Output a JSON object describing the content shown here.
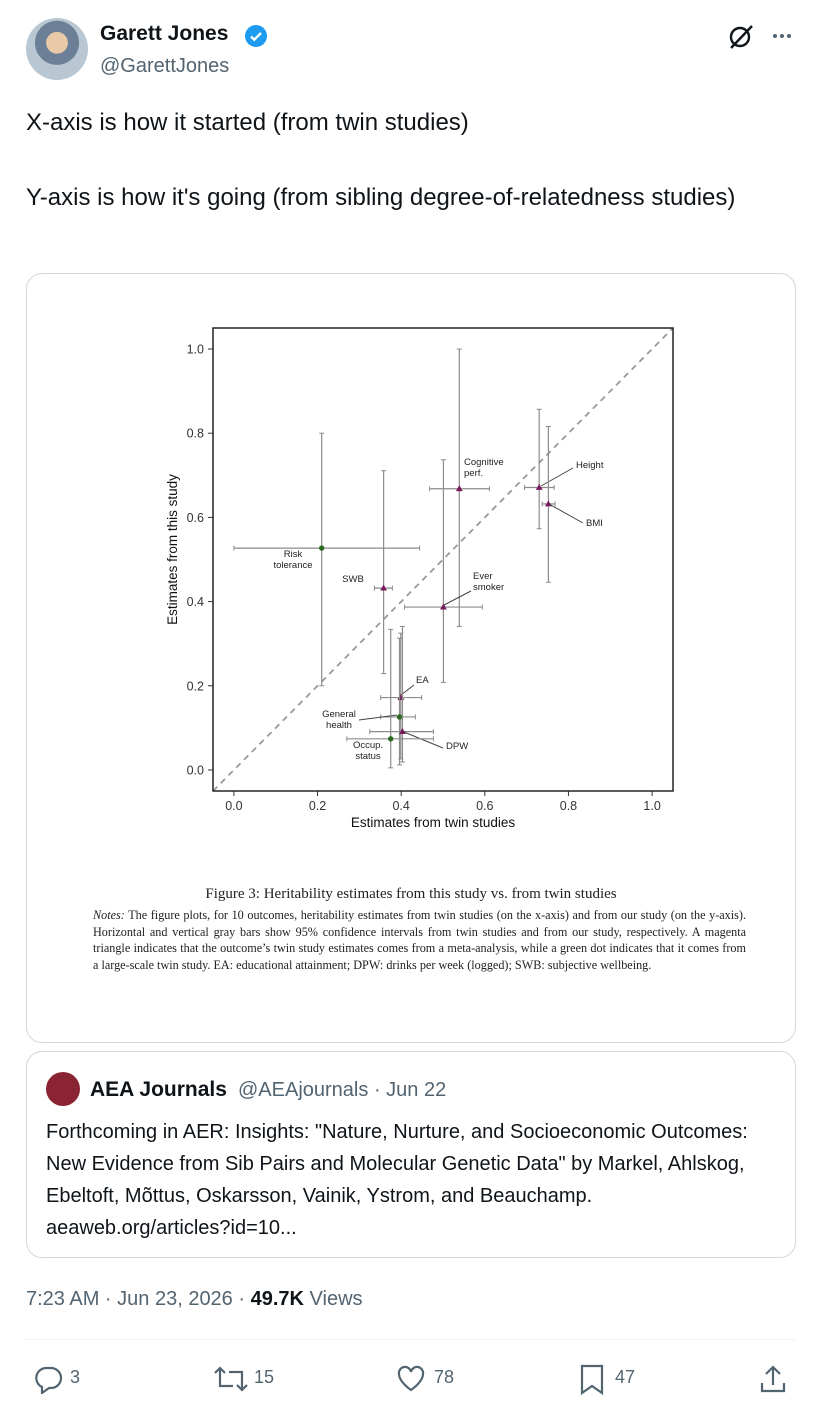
{
  "tweet": {
    "author": "Garett Jones",
    "handle": "@GarettJones",
    "text": [
      "X-axis is how it started (from twin studies)",
      "Y-axis is how it's going (from sibling degree-of-relatedness studies)"
    ],
    "quote": {
      "author": "AEA Journals",
      "handle": "@AEAjournals",
      "date": "· Jun 22",
      "text": "Forthcoming in AER: Insights: \"Nature, Nurture, and Socioeconomic Outcomes: New Evidence from Sib Pairs and Molecular Genetic Data\" by Markel, Ahlskog, Ebeltoft, Mõttus, Oskarsson, Vainik, Ystrom, and Beauchamp. aeaweb.org/articles?id=10..."
    },
    "timestamp": "7:23 AM · Jun 23, 2026 ·",
    "views": "49.7K",
    "views_label": "Views",
    "replies": 3,
    "reposts": 15,
    "likes": 78,
    "bookmarks": 47
  },
  "chart_data": {
    "type": "scatter",
    "xlabel": "Estimates from twin studies",
    "ylabel": "Estimates from this study",
    "xlim": [
      -0.05,
      1.05
    ],
    "ylim": [
      -0.05,
      1.05
    ],
    "xticks": [
      {
        "value": 0,
        "label": "0.0"
      },
      0.2,
      0.4,
      0.6,
      0.8,
      {
        "value": 1,
        "label": "1.0"
      }
    ],
    "yticks": [
      {
        "value": 0,
        "label": "0.0"
      },
      0.2,
      0.4,
      0.6,
      0.8,
      {
        "value": 1,
        "label": "1.0"
      }
    ],
    "diagonal": true,
    "marker_colors": {
      "triangle": "#7a1a5c",
      "dot": "#2d6a1f"
    },
    "points": [
      {
        "name": [
          "Risk",
          "tolerance"
        ],
        "marker": "dot",
        "x": 0.21,
        "y": 0.527,
        "x_ci": [
          0,
          0.444
        ],
        "y_ci": [
          0.2,
          0.8
        ]
      },
      {
        "name": [
          "SWB"
        ],
        "marker": "triangle",
        "x": 0.358,
        "y": 0.432,
        "x_ci": [
          0.336,
          0.379
        ],
        "y_ci": [
          0.229,
          0.711
        ]
      },
      {
        "name": [
          "Cognitive",
          "perf."
        ],
        "marker": "triangle",
        "x": 0.539,
        "y": 0.668,
        "x_ci": [
          0.468,
          0.611
        ],
        "y_ci": [
          0.341,
          1.0
        ]
      },
      {
        "name": [
          "Height"
        ],
        "marker": "triangle",
        "x": 0.73,
        "y": 0.671,
        "x_ci": [
          0.695,
          0.766
        ],
        "y_ci": [
          0.573,
          0.857
        ]
      },
      {
        "name": [
          "BMI"
        ],
        "marker": "triangle",
        "x": 0.752,
        "y": 0.632,
        "x_ci": [
          0.737,
          0.768
        ],
        "y_ci": [
          0.446,
          0.816
        ]
      },
      {
        "name": [
          "Ever",
          "smoker"
        ],
        "marker": "triangle",
        "x": 0.501,
        "y": 0.387,
        "x_ci": [
          0.408,
          0.594
        ],
        "y_ci": [
          0.208,
          0.737
        ]
      },
      {
        "name": [
          "EA"
        ],
        "marker": "triangle",
        "x": 0.399,
        "y": 0.172,
        "x_ci": [
          0.351,
          0.449
        ],
        "y_ci": [
          0.026,
          0.325
        ]
      },
      {
        "name": [
          "General",
          "health"
        ],
        "marker": "dot",
        "x": 0.396,
        "y": 0.126,
        "x_ci": [
          0.351,
          0.434
        ],
        "y_ci": [
          0.012,
          0.313
        ]
      },
      {
        "name": [
          "DPW"
        ],
        "marker": "triangle",
        "x": 0.403,
        "y": 0.091,
        "x_ci": [
          0.325,
          0.477
        ],
        "y_ci": [
          0.019,
          0.341
        ]
      },
      {
        "name": [
          "Occup.",
          "status"
        ],
        "marker": "dot",
        "x": 0.375,
        "y": 0.074,
        "x_ci": [
          0.27,
          0.477
        ],
        "y_ci": [
          0.005,
          0.334
        ]
      }
    ],
    "caption": "Figure 3: Heritability estimates from this study vs. from twin studies",
    "notes_label": "Notes:",
    "notes": "The figure plots, for 10 outcomes, heritability estimates from twin studies (on the x-axis) and from our study (on the y-axis). Horizontal and vertical gray bars show 95% confidence intervals from twin studies and from our study, respectively. A magenta triangle indicates that the outcome’s twin study estimates comes from a meta-analysis, while a green dot indicates that it comes from a large-scale twin study. EA: educational attainment; DPW: drinks per week (logged); SWB: subjective wellbeing."
  }
}
